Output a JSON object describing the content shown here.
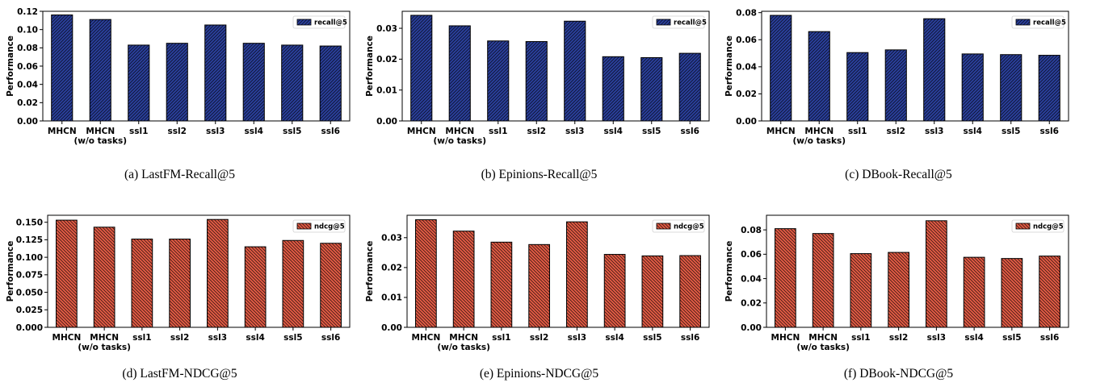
{
  "colors": {
    "recall": "#2a3f9a",
    "ndcg": "#e05a44",
    "edge": "#000000"
  },
  "charts": [
    {
      "caption": "(a)  LastFM-Recall@5",
      "chart_data": {
        "type": "bar",
        "categories": [
          "MHCN",
          "MHCN\n(w/o tasks)",
          "ssl1",
          "ssl2",
          "ssl3",
          "ssl4",
          "ssl5",
          "ssl6"
        ],
        "series": [
          {
            "name": "recall@5",
            "values": [
              0.116,
              0.111,
              0.083,
              0.085,
              0.105,
              0.085,
              0.083,
              0.082
            ]
          }
        ],
        "ylabel": "Performance",
        "ylim": [
          0,
          0.12
        ],
        "yticks": [
          0.0,
          0.02,
          0.04,
          0.06,
          0.08,
          0.1,
          0.12
        ],
        "ytick_labels": [
          "0.00",
          "0.02",
          "0.04",
          "0.06",
          "0.08",
          "0.10",
          "0.12"
        ],
        "legend": "top-right",
        "hatch": "////",
        "color": "#2a3f9a"
      }
    },
    {
      "caption": "(b)  Epinions-Recall@5",
      "chart_data": {
        "type": "bar",
        "categories": [
          "MHCN",
          "MHCN\n(w/o tasks)",
          "ssl1",
          "ssl2",
          "ssl3",
          "ssl4",
          "ssl5",
          "ssl6"
        ],
        "series": [
          {
            "name": "recall@5",
            "values": [
              0.0342,
              0.0308,
              0.0259,
              0.0257,
              0.0323,
              0.0208,
              0.0205,
              0.0219
            ]
          }
        ],
        "ylabel": "Performance",
        "ylim": [
          0,
          0.0355
        ],
        "yticks": [
          0.0,
          0.01,
          0.02,
          0.03
        ],
        "ytick_labels": [
          "0.00",
          "0.01",
          "0.02",
          "0.03"
        ],
        "legend": "top-right",
        "hatch": "////",
        "color": "#2a3f9a"
      }
    },
    {
      "caption": "(c)  DBook-Recall@5",
      "chart_data": {
        "type": "bar",
        "categories": [
          "MHCN",
          "MHCN\n(w/o tasks)",
          "ssl1",
          "ssl2",
          "ssl3",
          "ssl4",
          "ssl5",
          "ssl6"
        ],
        "series": [
          {
            "name": "recall@5",
            "values": [
              0.078,
              0.066,
              0.0505,
              0.0525,
              0.0755,
              0.0495,
              0.049,
              0.0485
            ]
          }
        ],
        "ylabel": "Performance",
        "ylim": [
          0,
          0.081
        ],
        "yticks": [
          0.0,
          0.02,
          0.04,
          0.06,
          0.08
        ],
        "ytick_labels": [
          "0.00",
          "0.02",
          "0.04",
          "0.06",
          "0.08"
        ],
        "legend": "top-right",
        "hatch": "////",
        "color": "#2a3f9a"
      }
    },
    {
      "caption": "(d)  LastFM-NDCG@5",
      "chart_data": {
        "type": "bar",
        "categories": [
          "MHCN",
          "MHCN\n(w/o tasks)",
          "ssl1",
          "ssl2",
          "ssl3",
          "ssl4",
          "ssl5",
          "ssl6"
        ],
        "series": [
          {
            "name": "ndcg@5",
            "values": [
              0.153,
              0.143,
              0.126,
              0.126,
              0.154,
              0.115,
              0.124,
              0.12
            ]
          }
        ],
        "ylabel": "Performance",
        "ylim": [
          0,
          0.16
        ],
        "yticks": [
          0.0,
          0.025,
          0.05,
          0.075,
          0.1,
          0.125,
          0.15
        ],
        "ytick_labels": [
          "0.000",
          "0.025",
          "0.050",
          "0.075",
          "0.100",
          "0.125",
          "0.150"
        ],
        "legend": "top-right",
        "hatch": "\\\\\\\\",
        "color": "#e05a44"
      }
    },
    {
      "caption": "(e)  Epinions-NDCG@5",
      "chart_data": {
        "type": "bar",
        "categories": [
          "MHCN",
          "MHCN\n(w/o tasks)",
          "ssl1",
          "ssl2",
          "ssl3",
          "ssl4",
          "ssl5",
          "ssl6"
        ],
        "series": [
          {
            "name": "ndcg@5",
            "values": [
              0.036,
              0.0322,
              0.0285,
              0.0277,
              0.0353,
              0.0244,
              0.0239,
              0.024
            ]
          }
        ],
        "ylabel": "Performance",
        "ylim": [
          0,
          0.0375
        ],
        "yticks": [
          0.0,
          0.01,
          0.02,
          0.03
        ],
        "ytick_labels": [
          "0.00",
          "0.01",
          "0.02",
          "0.03"
        ],
        "legend": "top-right",
        "hatch": "\\\\\\\\",
        "color": "#e05a44"
      }
    },
    {
      "caption": "(f)  DBook-NDCG@5",
      "chart_data": {
        "type": "bar",
        "categories": [
          "MHCN",
          "MHCN\n(w/o tasks)",
          "ssl1",
          "ssl2",
          "ssl3",
          "ssl4",
          "ssl5",
          "ssl6"
        ],
        "series": [
          {
            "name": "ndcg@5",
            "values": [
              0.081,
              0.077,
              0.0605,
              0.0615,
              0.0875,
              0.0575,
              0.0565,
              0.0585
            ]
          }
        ],
        "ylabel": "Performance",
        "ylim": [
          0,
          0.092
        ],
        "yticks": [
          0.0,
          0.02,
          0.04,
          0.06,
          0.08
        ],
        "ytick_labels": [
          "0.00",
          "0.02",
          "0.04",
          "0.06",
          "0.08"
        ],
        "legend": "top-right",
        "hatch": "\\\\\\\\",
        "color": "#e05a44"
      }
    }
  ]
}
